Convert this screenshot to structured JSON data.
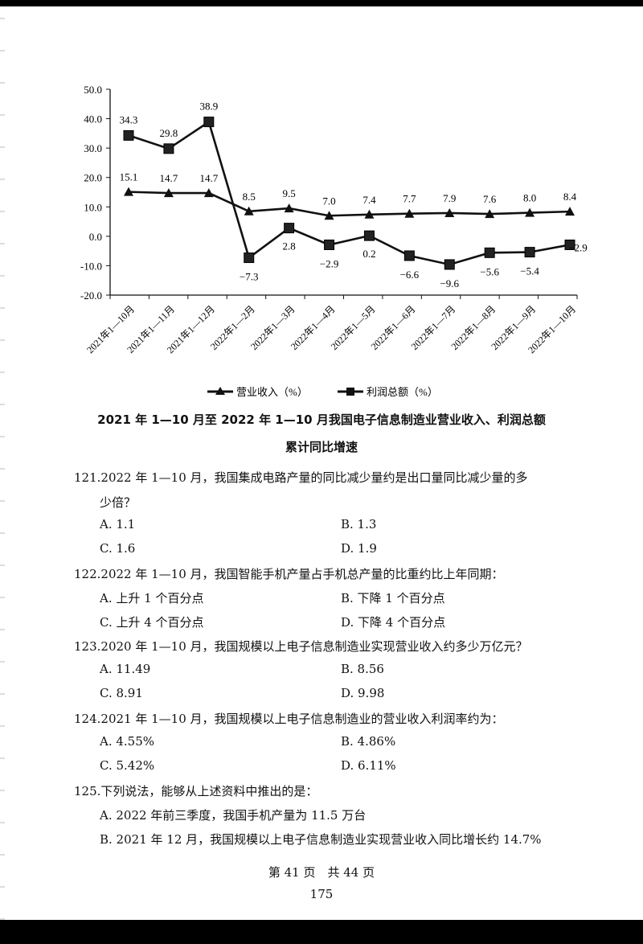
{
  "chart_data": {
    "type": "line",
    "title": "2021年1—10月至2022年1—10月我国电子信息制造业营业收入、利润总额累计同比增速",
    "xlabel": "",
    "ylabel": "",
    "ylim": [
      -20.0,
      50.0
    ],
    "yticks": [
      "50.0",
      "40.0",
      "30.0",
      "20.0",
      "10.0",
      "0.0",
      "-10.0",
      "-20.0"
    ],
    "grid": false,
    "legend_position": "bottom",
    "categories": [
      "2021年1—10月",
      "2021年1—11月",
      "2021年1—12月",
      "2022年1—2月",
      "2022年1—3月",
      "2022年1—4月",
      "2022年1—5月",
      "2022年1—6月",
      "2022年1—7月",
      "2022年1—8月",
      "2022年1—9月",
      "2022年1—10月"
    ],
    "series": [
      {
        "name": "营业收入（%）",
        "marker": "triangle",
        "values": [
          15.1,
          14.7,
          14.7,
          8.5,
          9.5,
          7.0,
          7.4,
          7.7,
          7.9,
          7.6,
          8.0,
          8.4
        ],
        "labels": [
          "15.1",
          "14.7",
          "14.7",
          "8.5",
          "9.5",
          "7.0",
          "7.4",
          "7.7",
          "7.9",
          "7.6",
          "8.0",
          "8.4"
        ]
      },
      {
        "name": "利润总额（%）",
        "marker": "square",
        "values": [
          34.3,
          29.8,
          38.9,
          -7.3,
          2.8,
          -2.9,
          0.2,
          -6.6,
          -9.6,
          -5.6,
          -5.4,
          -2.9
        ],
        "labels": [
          "34.3",
          "29.8",
          "38.9",
          "−7.3",
          "2.8",
          "−2.9",
          "0.2",
          "−6.6",
          "−9.6",
          "−5.6",
          "−5.4",
          "−2.9"
        ]
      }
    ]
  },
  "caption": {
    "line1": "2021 年 1—10 月至 2022 年 1—10 月我国电子信息制造业营业收入、利润总额",
    "line2": "累计同比增速"
  },
  "questions": [
    {
      "stem": "121.2022 年 1—10 月，我国集成电路产量的同比减少量约是出口量同比减少量的多",
      "stem2": "少倍？",
      "options": [
        "A. 1.1",
        "B. 1.3",
        "C. 1.6",
        "D. 1.9"
      ]
    },
    {
      "stem": "122.2022 年 1—10 月，我国智能手机产量占手机总产量的比重约比上年同期：",
      "options": [
        "A. 上升 1 个百分点",
        "B. 下降 1 个百分点",
        "C. 上升 4 个百分点",
        "D. 下降 4 个百分点"
      ]
    },
    {
      "stem": "123.2020 年 1—10 月，我国规模以上电子信息制造业实现营业收入约多少万亿元？",
      "options": [
        "A. 11.49",
        "B. 8.56",
        "C. 8.91",
        "D. 9.98"
      ]
    },
    {
      "stem": "124.2021 年 1—10 月，我国规模以上电子信息制造业的营业收入利润率约为：",
      "options": [
        "A. 4.55%",
        "B. 4.86%",
        "C. 5.42%",
        "D. 6.11%"
      ]
    },
    {
      "stem": "125.下列说法，能够从上述资料中推出的是：",
      "options": [
        "A. 2022 年前三季度，我国手机产量为 11.5 万台",
        "B. 2021 年 12 月，我国规模以上电子信息制造业实现营业收入同比增长约 14.7%"
      ]
    }
  ],
  "footer": {
    "page_info": "第 41 页　共 44 页",
    "page_number": "175"
  },
  "colors": {
    "ink": "#111111",
    "background": "#ffffff",
    "frame": "#000000"
  }
}
